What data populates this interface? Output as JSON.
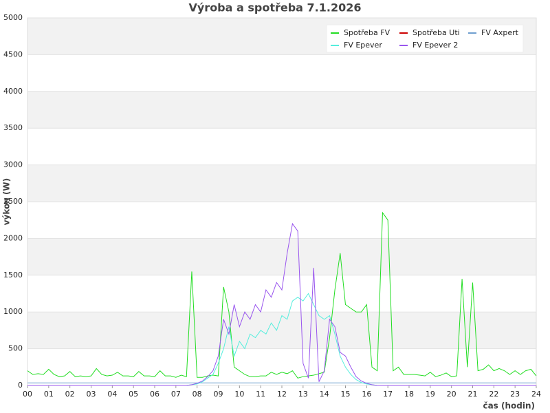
{
  "chart_data": {
    "type": "line",
    "title": "Výroba a spotřeba 7.1.2026",
    "x_label": "čas (hodin)",
    "y_label": "výkon (W)",
    "x": [
      0,
      0.25,
      0.5,
      0.75,
      1,
      1.25,
      1.5,
      1.75,
      2,
      2.25,
      2.5,
      2.75,
      3,
      3.25,
      3.5,
      3.75,
      4,
      4.25,
      4.5,
      4.75,
      5,
      5.25,
      5.5,
      5.75,
      6,
      6.25,
      6.5,
      6.75,
      7,
      7.25,
      7.5,
      7.75,
      8,
      8.25,
      8.5,
      8.75,
      9,
      9.25,
      9.5,
      9.75,
      10,
      10.25,
      10.5,
      10.75,
      11,
      11.25,
      11.5,
      11.75,
      12,
      12.25,
      12.5,
      12.75,
      13,
      13.25,
      13.5,
      13.75,
      14,
      14.25,
      14.5,
      14.75,
      15,
      15.25,
      15.5,
      15.75,
      16,
      16.25,
      16.5,
      16.75,
      17,
      17.25,
      17.5,
      17.75,
      18,
      18.25,
      18.5,
      18.75,
      19,
      19.25,
      19.5,
      19.75,
      20,
      20.25,
      20.5,
      20.75,
      21,
      21.25,
      21.5,
      21.75,
      22,
      22.25,
      22.5,
      22.75,
      23,
      23.25,
      23.5,
      23.75,
      24
    ],
    "xlim": [
      0,
      24
    ],
    "xticks": [
      {
        "value": 0,
        "label": "00"
      },
      {
        "value": 1,
        "label": "01"
      },
      {
        "value": 2,
        "label": "02"
      },
      {
        "value": 3,
        "label": "03"
      },
      {
        "value": 4,
        "label": "04"
      },
      {
        "value": 5,
        "label": "05"
      },
      {
        "value": 6,
        "label": "06"
      },
      {
        "value": 7,
        "label": "07"
      },
      {
        "value": 8,
        "label": "08"
      },
      {
        "value": 9,
        "label": "09"
      },
      10,
      11,
      12,
      13,
      14,
      15,
      16,
      17,
      18,
      19,
      20,
      21,
      22,
      23,
      24
    ],
    "ylim": [
      0,
      5000
    ],
    "yticks": [
      0,
      500,
      1000,
      1500,
      2000,
      2500,
      3000,
      3500,
      4000,
      4500,
      5000
    ],
    "grid": true,
    "legend": "top-right",
    "series": [
      {
        "name": "Spotřeba FV",
        "color": "#22dd22",
        "values": [
          200,
          150,
          160,
          150,
          220,
          150,
          120,
          130,
          190,
          120,
          130,
          120,
          130,
          230,
          150,
          130,
          140,
          180,
          130,
          130,
          120,
          190,
          130,
          130,
          120,
          200,
          130,
          130,
          110,
          140,
          120,
          1550,
          110,
          110,
          130,
          140,
          130,
          1340,
          1000,
          250,
          200,
          150,
          120,
          120,
          130,
          130,
          180,
          150,
          180,
          160,
          200,
          100,
          120,
          130,
          140,
          160,
          180,
          650,
          1300,
          1800,
          1100,
          1050,
          1000,
          1000,
          1100,
          250,
          200,
          2350,
          2250,
          200,
          250,
          150,
          150,
          150,
          140,
          130,
          180,
          120,
          140,
          170,
          120,
          130,
          1450,
          250,
          1400,
          200,
          220,
          280,
          200,
          230,
          200,
          150,
          200,
          150,
          200,
          220,
          130
        ]
      },
      {
        "name": "Spotřeba Uti",
        "color": "#cc0000",
        "values": [
          null,
          null,
          null,
          null,
          null,
          null,
          null,
          null,
          null,
          null,
          null,
          null,
          null,
          null,
          null,
          null,
          null,
          null,
          null,
          null,
          null,
          null,
          null,
          null,
          null,
          null,
          null,
          null,
          null,
          null,
          null,
          null,
          null,
          null,
          null,
          null,
          null,
          null,
          null,
          null,
          null,
          null,
          null,
          null,
          null,
          null,
          null,
          null,
          null,
          null,
          null,
          null,
          null,
          null,
          null,
          null,
          null,
          null,
          null,
          null,
          null,
          null,
          null,
          null,
          null,
          null,
          null,
          null,
          null,
          null,
          null,
          null,
          null,
          null,
          null,
          null,
          null,
          null,
          null,
          null,
          null,
          null,
          null,
          null,
          null,
          null,
          null,
          null,
          null,
          null,
          null,
          null,
          null,
          null,
          null,
          null,
          null
        ]
      },
      {
        "name": "FV Axpert",
        "color": "#6f9fcf",
        "values": [
          35,
          35,
          35,
          35,
          35,
          35,
          35,
          35,
          35,
          35,
          35,
          35,
          35,
          35,
          35,
          35,
          35,
          35,
          35,
          35,
          35,
          35,
          35,
          35,
          35,
          35,
          35,
          35,
          35,
          35,
          35,
          35,
          35,
          35,
          35,
          35,
          35,
          35,
          35,
          35,
          35,
          35,
          35,
          35,
          35,
          35,
          35,
          35,
          35,
          35,
          35,
          35,
          35,
          35,
          35,
          35,
          35,
          35,
          35,
          35,
          35,
          35,
          35,
          35,
          35,
          35,
          35,
          35,
          35,
          35,
          35,
          35,
          35,
          35,
          35,
          35,
          35,
          35,
          35,
          35,
          35,
          35,
          35,
          35,
          35,
          35,
          35,
          35,
          35,
          35,
          35,
          35,
          35,
          35,
          35,
          35,
          35
        ]
      },
      {
        "name": "FV Epever",
        "color": "#55eedd",
        "values": [
          0,
          0,
          0,
          0,
          0,
          0,
          0,
          0,
          0,
          0,
          0,
          0,
          0,
          0,
          0,
          0,
          0,
          0,
          0,
          0,
          0,
          0,
          0,
          0,
          0,
          0,
          0,
          0,
          0,
          0,
          0,
          10,
          20,
          50,
          100,
          150,
          300,
          500,
          800,
          400,
          600,
          500,
          700,
          650,
          750,
          700,
          850,
          750,
          950,
          900,
          1150,
          1200,
          1150,
          1250,
          1100,
          950,
          900,
          950,
          700,
          400,
          250,
          150,
          80,
          40,
          20,
          10,
          0,
          0,
          0,
          0,
          0,
          0,
          0,
          0,
          0,
          0,
          0,
          0,
          0,
          0,
          0,
          0,
          0,
          0,
          0,
          0,
          0,
          0,
          0,
          0,
          0,
          0,
          0,
          0,
          0,
          0,
          0
        ]
      },
      {
        "name": "FV Epever 2",
        "color": "#9955ee",
        "values": [
          0,
          0,
          0,
          0,
          0,
          0,
          0,
          0,
          0,
          0,
          0,
          0,
          0,
          0,
          0,
          0,
          0,
          0,
          0,
          0,
          0,
          0,
          0,
          0,
          0,
          0,
          0,
          0,
          0,
          0,
          0,
          10,
          30,
          60,
          120,
          200,
          400,
          900,
          700,
          1100,
          800,
          1000,
          900,
          1100,
          1000,
          1300,
          1200,
          1400,
          1300,
          1800,
          2200,
          2100,
          300,
          100,
          1600,
          50,
          200,
          900,
          800,
          450,
          400,
          250,
          120,
          60,
          30,
          10,
          0,
          0,
          0,
          0,
          0,
          0,
          0,
          0,
          0,
          0,
          0,
          0,
          0,
          0,
          0,
          0,
          0,
          0,
          0,
          0,
          0,
          0,
          0,
          0,
          0,
          0,
          0,
          0,
          0,
          0,
          0
        ]
      }
    ]
  }
}
